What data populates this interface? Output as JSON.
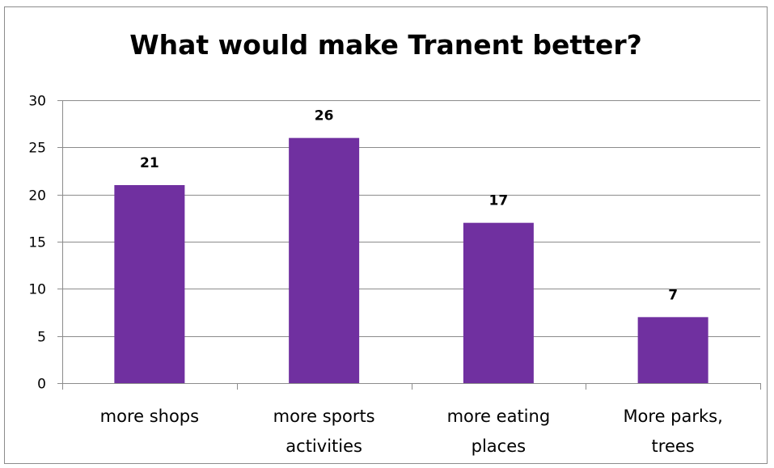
{
  "chart_data": {
    "type": "bar",
    "title": "What would make Tranent better?",
    "categories": [
      [
        "more shops"
      ],
      [
        "more sports",
        "activities"
      ],
      [
        "more eating",
        "places"
      ],
      [
        "More parks,",
        "trees"
      ]
    ],
    "values": [
      21,
      26,
      17,
      7
    ],
    "data_labels": [
      "21",
      "26",
      "17",
      "7"
    ],
    "ylim": [
      0,
      30
    ],
    "yticks": [
      0,
      5,
      10,
      15,
      20,
      25,
      30
    ],
    "grid": true,
    "legend": "none",
    "bar_color": "#7030A0"
  }
}
